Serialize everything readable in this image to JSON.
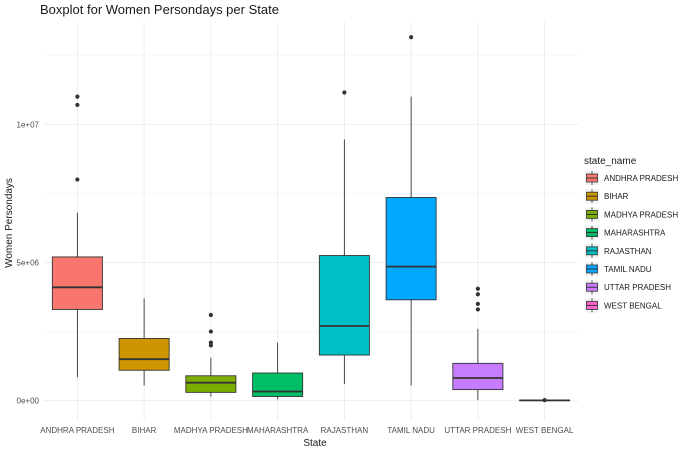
{
  "chart_data": {
    "type": "boxplot",
    "title": "Boxplot for Women Persondays per State",
    "xlabel": "State",
    "ylabel": "Women Persondays",
    "ylim": [
      -700000,
      13700000
    ],
    "yticks": [
      0,
      5000000,
      10000000
    ],
    "ytick_labels": [
      "0e+00",
      "5e+06",
      "1e+07"
    ],
    "grid": true,
    "legend": {
      "title": "state_name",
      "position": "right"
    },
    "categories": [
      "ANDHRA PRADESH",
      "BIHAR",
      "MADHYA PRADESH",
      "MAHARASHTRA",
      "RAJASTHAN",
      "TAMIL NADU",
      "UTTAR PRADESH",
      "WEST BENGAL"
    ],
    "colors": [
      "#F8766D",
      "#CD9600",
      "#7CAE00",
      "#00BE67",
      "#00BFC4",
      "#00A9FF",
      "#C77CFF",
      "#FF61CC"
    ],
    "boxes": [
      {
        "category": "ANDHRA PRADESH",
        "whisker_low": 850000,
        "q1": 3300000,
        "median": 4100000,
        "q3": 5200000,
        "whisker_high": 6800000,
        "outliers": [
          8000000,
          10700000,
          11000000
        ]
      },
      {
        "category": "BIHAR",
        "whisker_low": 550000,
        "q1": 1100000,
        "median": 1500000,
        "q3": 2250000,
        "whisker_high": 3700000,
        "outliers": []
      },
      {
        "category": "MADHYA PRADESH",
        "whisker_low": 150000,
        "q1": 300000,
        "median": 650000,
        "q3": 900000,
        "whisker_high": 1550000,
        "outliers": [
          2000000,
          2100000,
          2500000,
          3100000
        ]
      },
      {
        "category": "MAHARASHTRA",
        "whisker_low": 50000,
        "q1": 150000,
        "median": 330000,
        "q3": 1000000,
        "whisker_high": 2100000,
        "outliers": []
      },
      {
        "category": "RAJASTHAN",
        "whisker_low": 600000,
        "q1": 1650000,
        "median": 2700000,
        "q3": 5250000,
        "whisker_high": 9450000,
        "outliers": [
          11150000
        ]
      },
      {
        "category": "TAMIL NADU",
        "whisker_low": 550000,
        "q1": 3650000,
        "median": 4850000,
        "q3": 7350000,
        "whisker_high": 11000000,
        "outliers": [
          13150000
        ]
      },
      {
        "category": "UTTAR PRADESH",
        "whisker_low": 20000,
        "q1": 400000,
        "median": 820000,
        "q3": 1350000,
        "whisker_high": 2600000,
        "outliers": [
          3300000,
          3500000,
          3850000,
          4050000
        ]
      },
      {
        "category": "WEST BENGAL",
        "whisker_low": 0,
        "q1": 0,
        "median": 10000,
        "q3": 20000,
        "whisker_high": 30000,
        "outliers": [
          20000
        ]
      }
    ]
  }
}
